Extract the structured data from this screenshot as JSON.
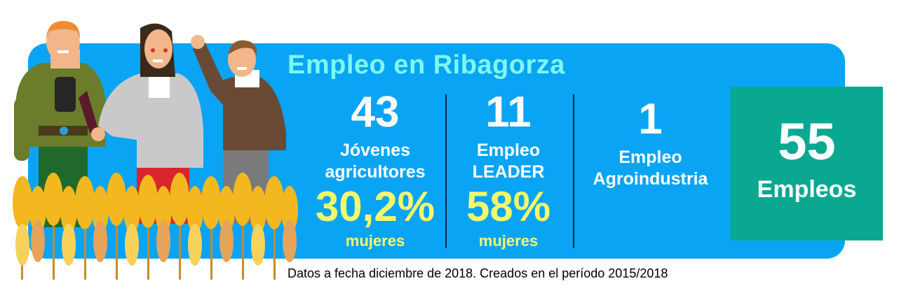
{
  "title": "Empleo en Ribagorza",
  "stats": [
    {
      "value": "43",
      "label_line1": "Jóvenes",
      "label_line2": "agricultores",
      "pct": "30,2%",
      "pct_label": "mujeres"
    },
    {
      "value": "11",
      "label_line1": "Empleo",
      "label_line2": "LEADER",
      "pct": "58%",
      "pct_label": "mujeres"
    },
    {
      "value": "1",
      "label_line1": "Empleo",
      "label_line2": "Agroindustria"
    }
  ],
  "total": {
    "value": "55",
    "label": "Empleos"
  },
  "footnote": "Datos a fecha diciembre de 2018. Creados en el período 2015/2018",
  "colors": {
    "banner": "#0aa4f5",
    "title": "#7ef7f3",
    "highlight": "#f6f86a",
    "total_box": "#0aa890"
  },
  "illustration": "three-farmers-in-wheat-field"
}
